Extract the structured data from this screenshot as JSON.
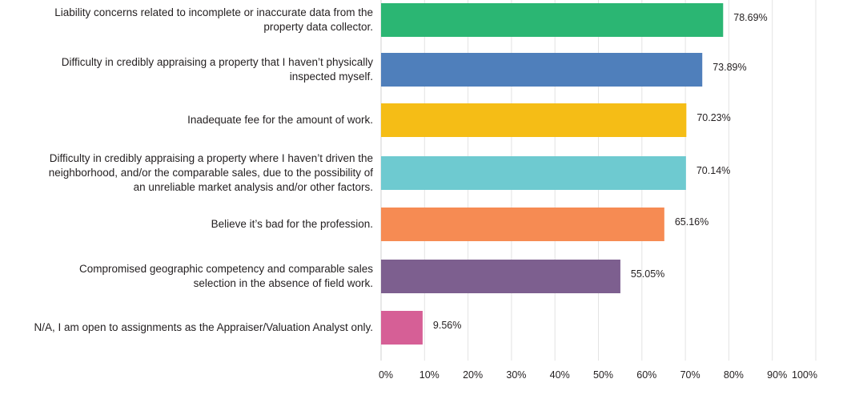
{
  "chart_data": {
    "type": "bar",
    "orientation": "horizontal",
    "categories": [
      "Liability concerns related to incomplete or inaccurate data from the\nproperty data collector.",
      "Difficulty in credibly appraising a property that I haven’t physically\ninspected myself.",
      "Inadequate fee for the amount of work.",
      "Difficulty in credibly appraising a property where I haven’t driven the\nneighborhood, and/or the comparable sales, due to the possibility of\nan unreliable market analysis and/or other factors.",
      "Believe it’s bad for the profession.",
      "Compromised geographic competency and comparable sales\nselection in the absence of field work.",
      "N/A, I am open to assignments as the Appraiser/Valuation Analyst only."
    ],
    "values": [
      78.69,
      73.89,
      70.23,
      70.14,
      65.16,
      55.05,
      9.56
    ],
    "value_labels": [
      "78.69%",
      "73.89%",
      "70.23%",
      "70.14%",
      "65.16%",
      "55.05%",
      "9.56%"
    ],
    "colors": [
      "#2bb673",
      "#4f7fbb",
      "#f5bd16",
      "#6ecad0",
      "#f68b53",
      "#7d5f8f",
      "#d65f96"
    ],
    "xlim": [
      0,
      100
    ],
    "xticks": [
      "0%",
      "10%",
      "20%",
      "30%",
      "40%",
      "50%",
      "60%",
      "70%",
      "80%",
      "90%",
      "100%"
    ],
    "grid": true,
    "gridline_color": "#e3e3e3",
    "title": "",
    "xlabel": "",
    "ylabel": ""
  }
}
